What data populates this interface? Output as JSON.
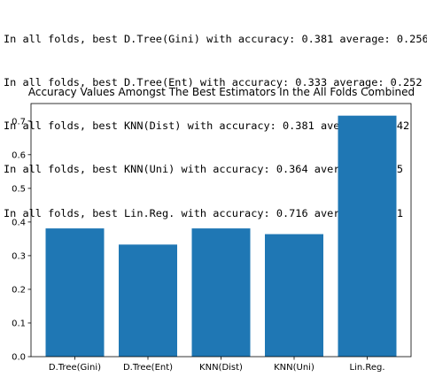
{
  "console": {
    "lines": [
      "In all folds, best D.Tree(Gini) with accuracy: 0.381 average: 0.256",
      "In all folds, best D.Tree(Ent) with accuracy: 0.333 average: 0.252",
      "In all folds, best KNN(Dist) with accuracy: 0.381 average: 0.242",
      "In all folds, best KNN(Uni) with accuracy: 0.364 average: 0.255",
      "In all folds, best Lin.Reg. with accuracy: 0.716 average: 0.271"
    ]
  },
  "chart_data": {
    "type": "bar",
    "title": "Accuracy Values Amongst The Best Estimators In the All Folds Combined",
    "categories": [
      "D.Tree(Gini)",
      "D.Tree(Ent)",
      "KNN(Dist)",
      "KNN(Uni)",
      "Lin.Reg."
    ],
    "values": [
      0.381,
      0.333,
      0.381,
      0.364,
      0.716
    ],
    "xlabel": "",
    "ylabel": "",
    "ylim": [
      0,
      0.752
    ],
    "yticks": [
      0.0,
      0.1,
      0.2,
      0.3,
      0.4,
      0.5,
      0.6,
      0.7
    ],
    "ytick_labels": [
      "0.0",
      "0.1",
      "0.2",
      "0.3",
      "0.4",
      "0.5",
      "0.6",
      "0.7"
    ],
    "bar_color": "#1f77b4",
    "grid": false,
    "legend": "none"
  }
}
